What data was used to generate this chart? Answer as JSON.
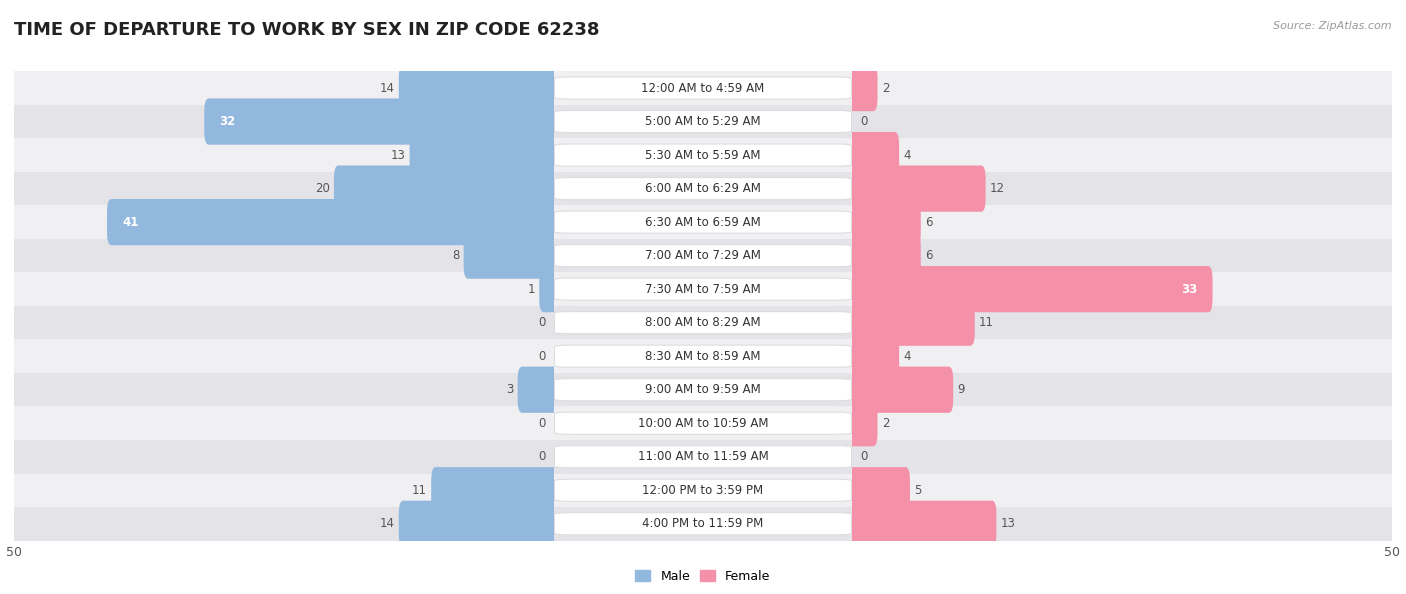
{
  "title": "TIME OF DEPARTURE TO WORK BY SEX IN ZIP CODE 62238",
  "source": "Source: ZipAtlas.com",
  "categories": [
    "12:00 AM to 4:59 AM",
    "5:00 AM to 5:29 AM",
    "5:30 AM to 5:59 AM",
    "6:00 AM to 6:29 AM",
    "6:30 AM to 6:59 AM",
    "7:00 AM to 7:29 AM",
    "7:30 AM to 7:59 AM",
    "8:00 AM to 8:29 AM",
    "8:30 AM to 8:59 AM",
    "9:00 AM to 9:59 AM",
    "10:00 AM to 10:59 AM",
    "11:00 AM to 11:59 AM",
    "12:00 PM to 3:59 PM",
    "4:00 PM to 11:59 PM"
  ],
  "male": [
    14,
    32,
    13,
    20,
    41,
    8,
    1,
    0,
    0,
    3,
    0,
    0,
    11,
    14
  ],
  "female": [
    2,
    0,
    4,
    12,
    6,
    6,
    33,
    11,
    4,
    9,
    2,
    0,
    5,
    13
  ],
  "male_color": "#93b8de",
  "female_color": "#f490a8",
  "male_color_dark": "#6a9fd0",
  "female_color_dark": "#e85c7e",
  "row_color_light": "#f0f0f2",
  "row_color_dark": "#e4e4e8",
  "max_val": 50,
  "bar_height": 0.58,
  "cat_fontsize": 8.5,
  "value_fontsize": 8.5,
  "title_fontsize": 13,
  "legend_fontsize": 9,
  "source_fontsize": 8
}
